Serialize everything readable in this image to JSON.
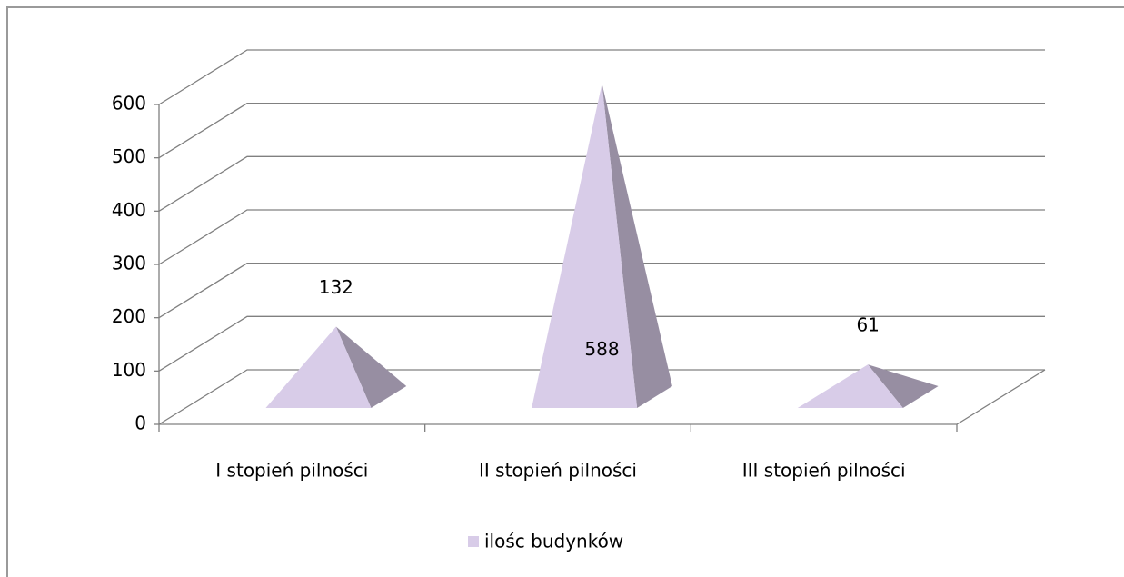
{
  "chart_data": {
    "type": "pyramid",
    "categories": [
      "I stopień pilności",
      "II stopień pilności",
      "III stopień pilności"
    ],
    "series": [
      {
        "name": "ilośc budynków",
        "color": "#d8cce8",
        "values": [
          132,
          588,
          61
        ]
      }
    ],
    "ylim": [
      0,
      600
    ],
    "yticks": [
      0,
      100,
      200,
      300,
      400,
      500,
      600
    ],
    "grid": true,
    "legend": "bottom"
  }
}
